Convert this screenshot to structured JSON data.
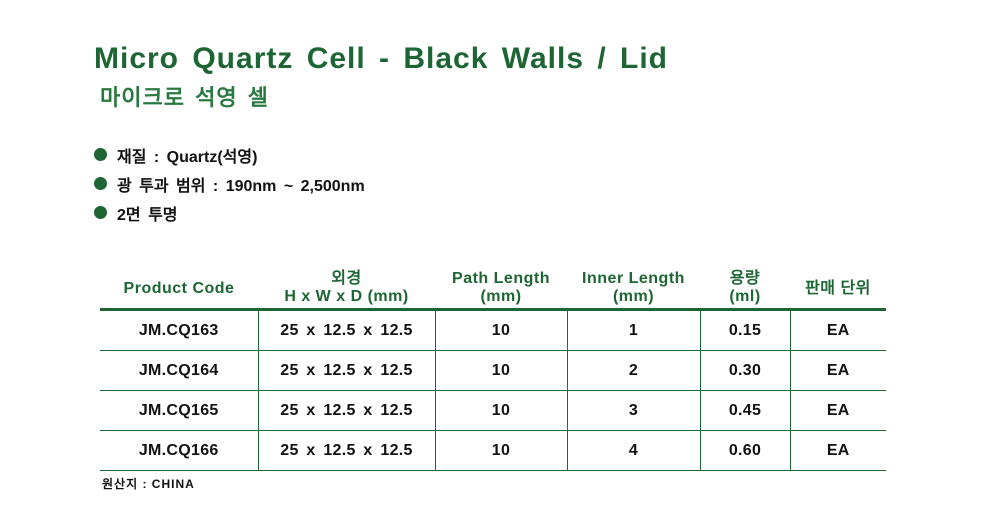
{
  "title": "Micro Quartz Cell - Black Walls / Lid",
  "subtitle": "마이크로 석영 셀",
  "specs": [
    "재질 : Quartz(석영)",
    "광 투과 범위 : 190nm ~ 2,500nm",
    "2면 투명"
  ],
  "table": {
    "headers": [
      [
        "Product Code",
        ""
      ],
      [
        "외경",
        "H x W x D (mm)"
      ],
      [
        "Path Length",
        "(mm)"
      ],
      [
        "Inner Length",
        "(mm)"
      ],
      [
        "용량",
        "(ml)"
      ],
      [
        "판매 단위",
        ""
      ]
    ],
    "rows": [
      [
        "JM.CQ163",
        "25 x 12.5 x 12.5",
        "10",
        "1",
        "0.15",
        "EA"
      ],
      [
        "JM.CQ164",
        "25 x 12.5 x 12.5",
        "10",
        "2",
        "0.30",
        "EA"
      ],
      [
        "JM.CQ165",
        "25 x 12.5 x 12.5",
        "10",
        "3",
        "0.45",
        "EA"
      ],
      [
        "JM.CQ166",
        "25 x 12.5 x 12.5",
        "10",
        "4",
        "0.60",
        "EA"
      ]
    ]
  },
  "origin": "원산지 : CHINA",
  "colors": {
    "accent": "#1d6634"
  }
}
